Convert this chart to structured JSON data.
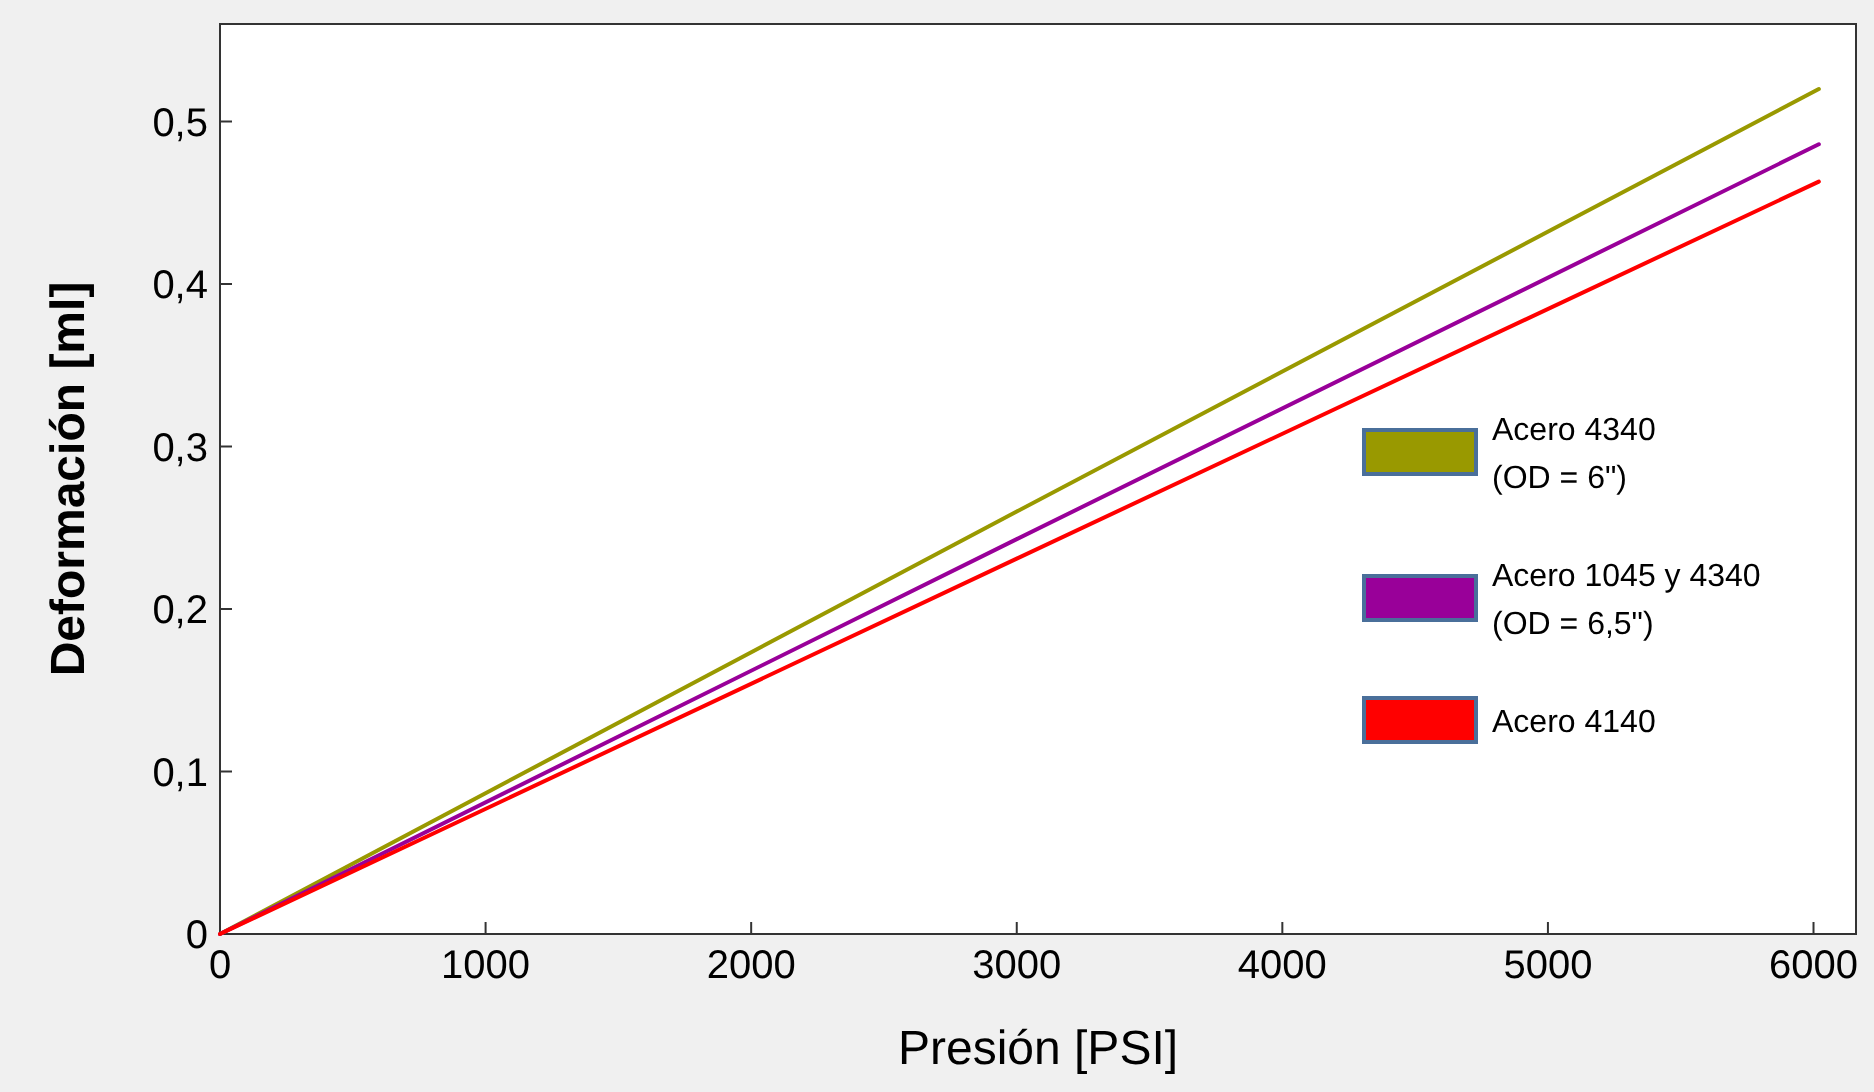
{
  "chart_data": {
    "type": "line",
    "xlabel": "Presión [PSI]",
    "ylabel": "Deformación [ml]",
    "xlim": [
      0,
      6160
    ],
    "xticks": [
      0,
      1000,
      2000,
      3000,
      4000,
      5000,
      6000
    ],
    "ylim": [
      0,
      0.56
    ],
    "yticks": [
      0,
      {
        "value": 0.1,
        "label": "0,1"
      },
      {
        "value": 0.2,
        "label": "0,2"
      },
      {
        "value": 0.3,
        "label": "0,3"
      },
      {
        "value": 0.4,
        "label": "0,4"
      },
      {
        "value": 0.5,
        "label": "0,5"
      }
    ],
    "x": [
      0,
      3000,
      6020
    ],
    "series": [
      {
        "name": "Acero 4340 (OD = 6\")",
        "color": "#999900",
        "values": [
          0,
          0.26,
          0.52
        ]
      },
      {
        "name": "Acero 1045 y 4340 (OD = 6,5\")",
        "color": "#990099",
        "values": [
          0,
          0.243,
          0.486
        ]
      },
      {
        "name": "Acero 4140",
        "color": "#ff0000",
        "values": [
          0,
          0.231,
          0.463
        ]
      }
    ],
    "legend": "right",
    "grid": false,
    "marker": "none",
    "line_style": "solid"
  }
}
